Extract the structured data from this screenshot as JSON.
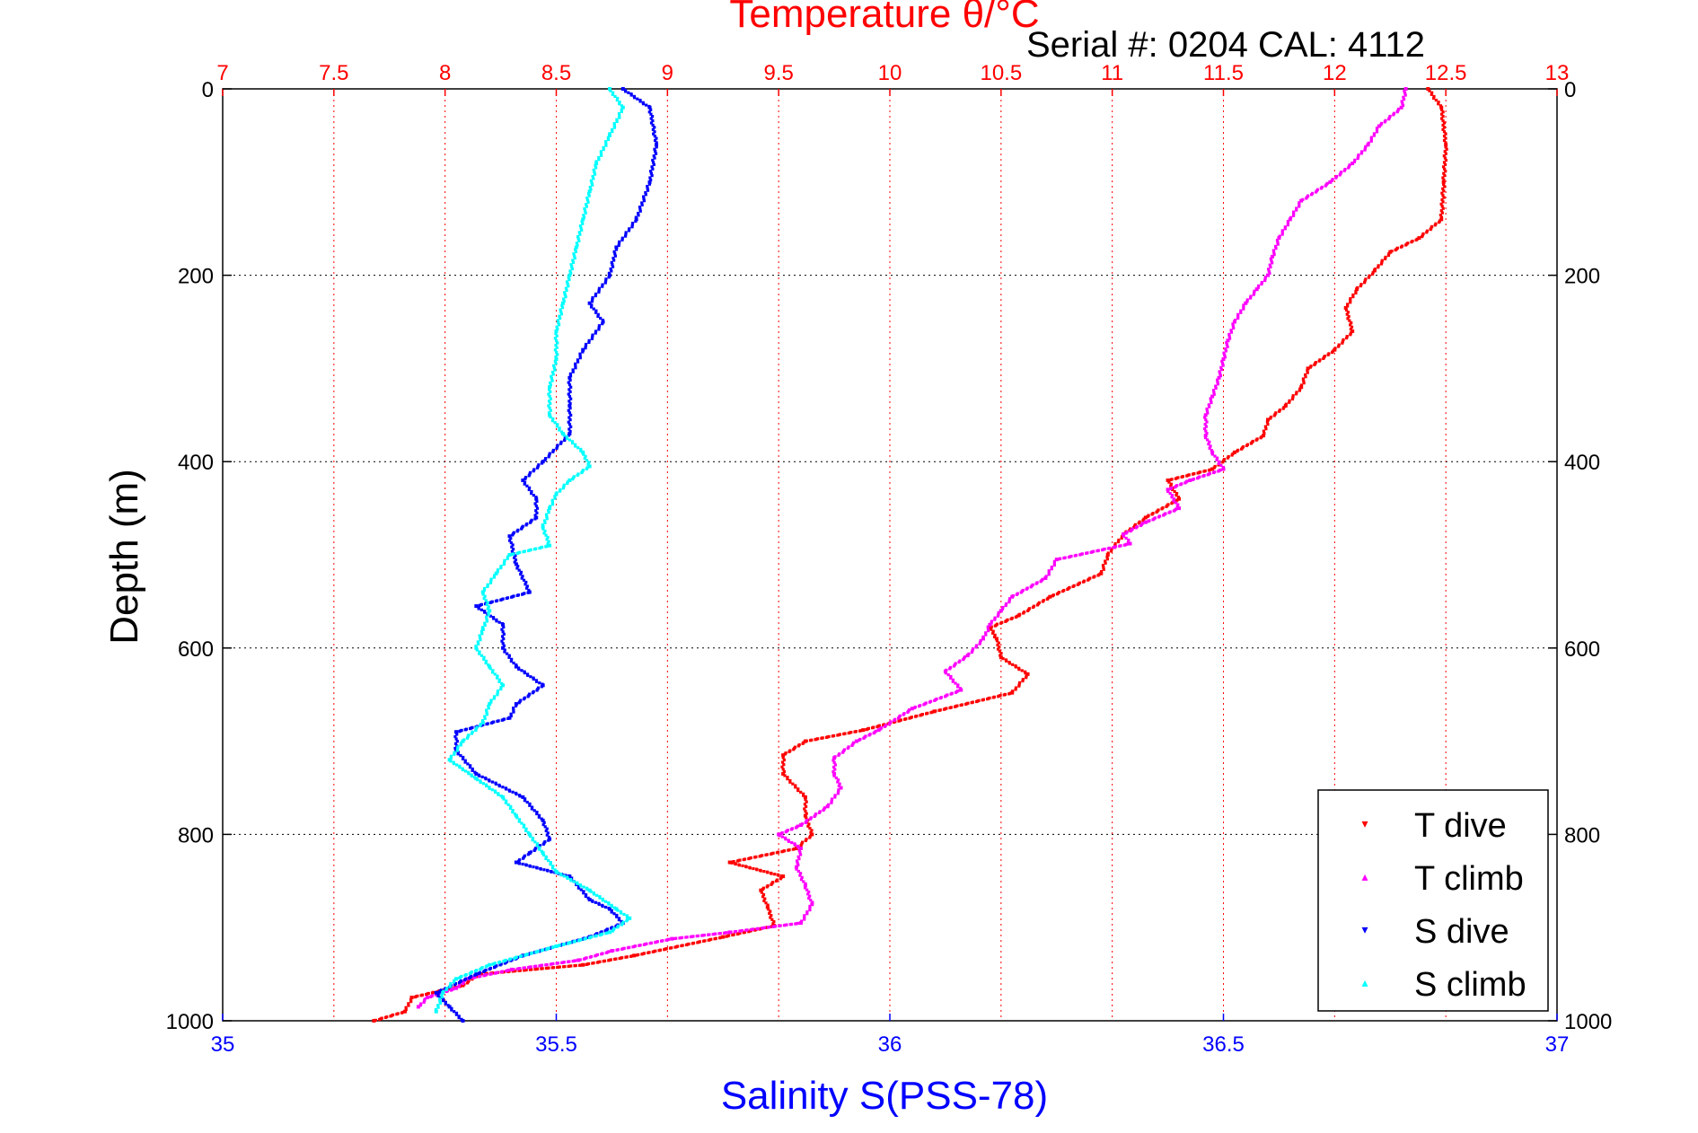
{
  "chart_data": {
    "type": "scatter",
    "title_top_axis": "Temperature θ/°C",
    "serial_label": "Serial #: 0204  CAL: 4112",
    "ylabel": "Depth (m)",
    "xlabel_bottom": "Salinity S(PSS-78)",
    "y_axis": {
      "range": [
        0,
        1000
      ],
      "reversed": true,
      "ticks": [
        0,
        200,
        400,
        600,
        800,
        1000
      ]
    },
    "bottom_axis": {
      "quantity": "salinity",
      "range": [
        35,
        37
      ],
      "ticks": [
        "35",
        "35.5",
        "36",
        "36.5",
        "37"
      ],
      "color": "#0000ff"
    },
    "top_axis": {
      "quantity": "temperature",
      "range": [
        7,
        13
      ],
      "ticks": [
        "7",
        "7.5",
        "8",
        "8.5",
        "9",
        "9.5",
        "10",
        "10.5",
        "11",
        "11.5",
        "12",
        "12.5",
        "13"
      ],
      "color": "#ff0000"
    },
    "grid": true,
    "legend_position": "bottom-right",
    "series": [
      {
        "name": "T dive",
        "axis": "top",
        "color": "#ff0000",
        "marker": "▾",
        "points": [
          [
            12.42,
            0
          ],
          [
            12.48,
            20
          ],
          [
            12.5,
            60
          ],
          [
            12.49,
            100
          ],
          [
            12.48,
            140
          ],
          [
            12.38,
            160
          ],
          [
            12.25,
            175
          ],
          [
            12.18,
            195
          ],
          [
            12.1,
            215
          ],
          [
            12.05,
            235
          ],
          [
            12.08,
            260
          ],
          [
            12.0,
            280
          ],
          [
            11.88,
            300
          ],
          [
            11.85,
            320
          ],
          [
            11.78,
            340
          ],
          [
            11.7,
            355
          ],
          [
            11.68,
            372
          ],
          [
            11.55,
            390
          ],
          [
            11.45,
            408
          ],
          [
            11.25,
            420
          ],
          [
            11.3,
            440
          ],
          [
            11.15,
            460
          ],
          [
            11.05,
            478
          ],
          [
            10.98,
            500
          ],
          [
            10.95,
            520
          ],
          [
            10.72,
            545
          ],
          [
            10.58,
            565
          ],
          [
            10.45,
            578
          ],
          [
            10.48,
            590
          ],
          [
            10.5,
            610
          ],
          [
            10.62,
            628
          ],
          [
            10.55,
            648
          ],
          [
            10.2,
            668
          ],
          [
            9.88,
            688
          ],
          [
            9.62,
            700
          ],
          [
            9.52,
            715
          ],
          [
            9.52,
            735
          ],
          [
            9.62,
            760
          ],
          [
            9.62,
            780
          ],
          [
            9.65,
            800
          ],
          [
            9.58,
            815
          ],
          [
            9.28,
            830
          ],
          [
            9.52,
            845
          ],
          [
            9.42,
            860
          ],
          [
            9.45,
            878
          ],
          [
            9.48,
            898
          ],
          [
            9.25,
            910
          ],
          [
            8.85,
            930
          ],
          [
            8.62,
            940
          ],
          [
            8.15,
            950
          ],
          [
            8.08,
            962
          ],
          [
            7.85,
            975
          ],
          [
            7.82,
            990
          ],
          [
            7.68,
            1000
          ]
        ]
      },
      {
        "name": "T climb",
        "axis": "top",
        "color": "#ff00ff",
        "marker": "▴",
        "points": [
          [
            12.32,
            0
          ],
          [
            12.3,
            20
          ],
          [
            12.2,
            40
          ],
          [
            12.15,
            60
          ],
          [
            12.08,
            80
          ],
          [
            11.98,
            100
          ],
          [
            11.85,
            120
          ],
          [
            11.8,
            140
          ],
          [
            11.75,
            160
          ],
          [
            11.72,
            180
          ],
          [
            11.7,
            200
          ],
          [
            11.65,
            215
          ],
          [
            11.6,
            230
          ],
          [
            11.55,
            250
          ],
          [
            11.52,
            270
          ],
          [
            11.5,
            290
          ],
          [
            11.48,
            310
          ],
          [
            11.45,
            330
          ],
          [
            11.42,
            350
          ],
          [
            11.42,
            372
          ],
          [
            11.45,
            390
          ],
          [
            11.5,
            408
          ],
          [
            11.35,
            420
          ],
          [
            11.25,
            430
          ],
          [
            11.3,
            450
          ],
          [
            11.15,
            465
          ],
          [
            11.05,
            478
          ],
          [
            11.08,
            488
          ],
          [
            10.75,
            505
          ],
          [
            10.7,
            525
          ],
          [
            10.55,
            545
          ],
          [
            10.5,
            560
          ],
          [
            10.45,
            575
          ],
          [
            10.42,
            590
          ],
          [
            10.35,
            608
          ],
          [
            10.25,
            625
          ],
          [
            10.32,
            645
          ],
          [
            10.1,
            665
          ],
          [
            9.95,
            688
          ],
          [
            9.85,
            700
          ],
          [
            9.75,
            718
          ],
          [
            9.75,
            735
          ],
          [
            9.78,
            750
          ],
          [
            9.72,
            770
          ],
          [
            9.6,
            790
          ],
          [
            9.5,
            800
          ],
          [
            9.6,
            815
          ],
          [
            9.58,
            835
          ],
          [
            9.62,
            855
          ],
          [
            9.65,
            875
          ],
          [
            9.6,
            895
          ],
          [
            9.28,
            905
          ],
          [
            9.02,
            912
          ],
          [
            8.75,
            925
          ],
          [
            8.6,
            935
          ],
          [
            8.3,
            945
          ],
          [
            8.1,
            955
          ],
          [
            8.05,
            965
          ],
          [
            7.92,
            975
          ],
          [
            7.88,
            985
          ]
        ]
      },
      {
        "name": "S dive",
        "axis": "bottom",
        "color": "#0000ff",
        "marker": "▾",
        "points": [
          [
            35.6,
            0
          ],
          [
            35.64,
            20
          ],
          [
            35.65,
            60
          ],
          [
            35.64,
            100
          ],
          [
            35.62,
            140
          ],
          [
            35.59,
            170
          ],
          [
            35.58,
            200
          ],
          [
            35.55,
            230
          ],
          [
            35.57,
            250
          ],
          [
            35.54,
            280
          ],
          [
            35.52,
            310
          ],
          [
            35.52,
            340
          ],
          [
            35.52,
            370
          ],
          [
            35.48,
            400
          ],
          [
            35.45,
            420
          ],
          [
            35.47,
            440
          ],
          [
            35.47,
            460
          ],
          [
            35.43,
            480
          ],
          [
            35.44,
            510
          ],
          [
            35.46,
            540
          ],
          [
            35.38,
            555
          ],
          [
            35.42,
            575
          ],
          [
            35.42,
            600
          ],
          [
            35.44,
            620
          ],
          [
            35.48,
            640
          ],
          [
            35.44,
            660
          ],
          [
            35.43,
            675
          ],
          [
            35.35,
            690
          ],
          [
            35.35,
            710
          ],
          [
            35.38,
            735
          ],
          [
            35.45,
            760
          ],
          [
            35.48,
            785
          ],
          [
            35.49,
            805
          ],
          [
            35.46,
            820
          ],
          [
            35.44,
            830
          ],
          [
            35.52,
            845
          ],
          [
            35.55,
            870
          ],
          [
            35.58,
            880
          ],
          [
            35.6,
            895
          ],
          [
            35.55,
            910
          ],
          [
            35.45,
            930
          ],
          [
            35.38,
            950
          ],
          [
            35.32,
            970
          ],
          [
            35.34,
            985
          ],
          [
            35.36,
            1000
          ]
        ]
      },
      {
        "name": "S climb",
        "axis": "bottom",
        "color": "#00ffff",
        "marker": "▴",
        "points": [
          [
            35.58,
            0
          ],
          [
            35.6,
            20
          ],
          [
            35.58,
            50
          ],
          [
            35.56,
            80
          ],
          [
            35.55,
            110
          ],
          [
            35.54,
            140
          ],
          [
            35.53,
            170
          ],
          [
            35.52,
            200
          ],
          [
            35.51,
            230
          ],
          [
            35.5,
            260
          ],
          [
            35.5,
            290
          ],
          [
            35.49,
            320
          ],
          [
            35.49,
            350
          ],
          [
            35.51,
            370
          ],
          [
            35.54,
            390
          ],
          [
            35.55,
            405
          ],
          [
            35.52,
            420
          ],
          [
            35.5,
            435
          ],
          [
            35.49,
            450
          ],
          [
            35.48,
            470
          ],
          [
            35.49,
            490
          ],
          [
            35.43,
            500
          ],
          [
            35.41,
            520
          ],
          [
            35.39,
            540
          ],
          [
            35.4,
            560
          ],
          [
            35.39,
            580
          ],
          [
            35.38,
            600
          ],
          [
            35.4,
            620
          ],
          [
            35.42,
            640
          ],
          [
            35.4,
            660
          ],
          [
            35.39,
            680
          ],
          [
            35.36,
            700
          ],
          [
            35.34,
            720
          ],
          [
            35.38,
            740
          ],
          [
            35.42,
            760
          ],
          [
            35.44,
            780
          ],
          [
            35.46,
            800
          ],
          [
            35.48,
            820
          ],
          [
            35.5,
            840
          ],
          [
            35.55,
            860
          ],
          [
            35.59,
            880
          ],
          [
            35.61,
            890
          ],
          [
            35.58,
            905
          ],
          [
            35.5,
            920
          ],
          [
            35.4,
            940
          ],
          [
            35.35,
            955
          ],
          [
            35.33,
            970
          ],
          [
            35.32,
            990
          ]
        ]
      }
    ]
  }
}
